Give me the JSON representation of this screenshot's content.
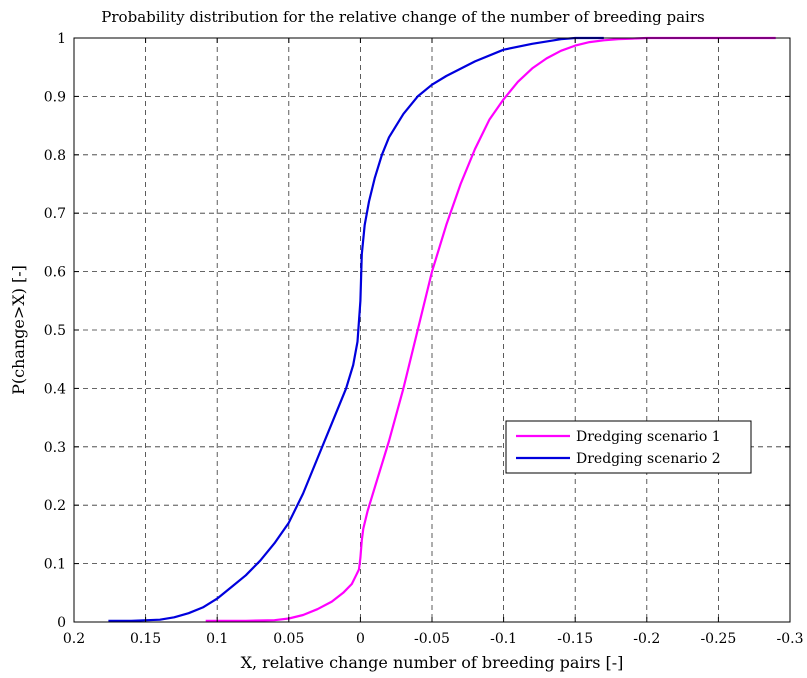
{
  "chart_data": {
    "type": "line",
    "title": "Probability distribution for the relative change of the number of breeding pairs",
    "xlabel": "X, relative change number of breeding pairs [-]",
    "ylabel": "P(change>X) [-]",
    "xlim": [
      0.2,
      -0.3
    ],
    "x_reversed": true,
    "ylim": [
      0,
      1
    ],
    "x_ticks": [
      0.2,
      0.15,
      0.1,
      0.05,
      0,
      -0.05,
      -0.1,
      -0.15,
      -0.2,
      -0.25,
      -0.3
    ],
    "x_tick_labels": [
      "0.2",
      "0.15",
      "0.1",
      "0.05",
      "0",
      "-0.05",
      "-0.1",
      "-0.15",
      "-0.2",
      "-0.25",
      "-0.3"
    ],
    "y_ticks": [
      0,
      0.1,
      0.2,
      0.3,
      0.4,
      0.5,
      0.6,
      0.7,
      0.8,
      0.9,
      1
    ],
    "y_tick_labels": [
      "0",
      "0.1",
      "0.2",
      "0.3",
      "0.4",
      "0.5",
      "0.6",
      "0.7",
      "0.8",
      "0.9",
      "1"
    ],
    "grid": true,
    "legend_position": "center-right",
    "series": [
      {
        "name": "Dredging scenario 1",
        "color": "#ff00ff",
        "x": [
          0.108,
          0.08,
          0.06,
          0.05,
          0.04,
          0.03,
          0.02,
          0.012,
          0.006,
          0.003,
          0.001,
          0.0,
          -0.001,
          -0.002,
          -0.005,
          -0.01,
          -0.02,
          -0.03,
          -0.04,
          -0.05,
          -0.06,
          -0.07,
          -0.08,
          -0.09,
          -0.1,
          -0.11,
          -0.12,
          -0.13,
          -0.14,
          -0.15,
          -0.16,
          -0.17,
          -0.18,
          -0.19,
          -0.2,
          -0.22,
          -0.25,
          -0.29
        ],
        "y": [
          0.002,
          0.002,
          0.003,
          0.006,
          0.012,
          0.022,
          0.035,
          0.05,
          0.065,
          0.08,
          0.09,
          0.11,
          0.14,
          0.16,
          0.19,
          0.23,
          0.31,
          0.4,
          0.5,
          0.6,
          0.68,
          0.75,
          0.81,
          0.86,
          0.895,
          0.925,
          0.948,
          0.965,
          0.978,
          0.987,
          0.993,
          0.996,
          0.998,
          0.999,
          1.0,
          1.0,
          1.0,
          1.0
        ]
      },
      {
        "name": "Dredging scenario 2",
        "color": "#0000dd",
        "x": [
          0.176,
          0.16,
          0.14,
          0.13,
          0.12,
          0.11,
          0.1,
          0.09,
          0.08,
          0.07,
          0.06,
          0.05,
          0.04,
          0.03,
          0.02,
          0.01,
          0.005,
          0.002,
          0.0,
          -0.001,
          -0.003,
          -0.006,
          -0.01,
          -0.015,
          -0.02,
          -0.03,
          -0.04,
          -0.05,
          -0.06,
          -0.08,
          -0.1,
          -0.12,
          -0.14,
          -0.15,
          -0.17
        ],
        "y": [
          0.002,
          0.002,
          0.004,
          0.008,
          0.015,
          0.025,
          0.04,
          0.06,
          0.08,
          0.105,
          0.135,
          0.17,
          0.22,
          0.28,
          0.34,
          0.4,
          0.44,
          0.48,
          0.55,
          0.63,
          0.68,
          0.72,
          0.76,
          0.8,
          0.83,
          0.87,
          0.9,
          0.92,
          0.935,
          0.96,
          0.98,
          0.99,
          0.998,
          1.0,
          1.0
        ]
      }
    ]
  }
}
